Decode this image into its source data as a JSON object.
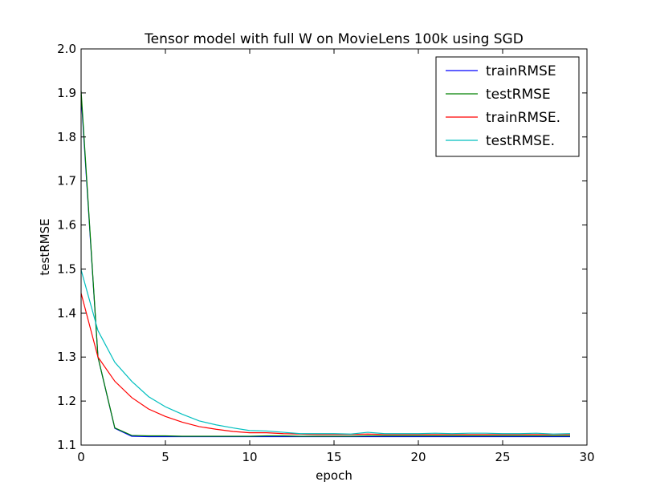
{
  "chart_data": {
    "type": "line",
    "title": "Tensor model with full W on MovieLens 100k using SGD",
    "xlabel": "epoch",
    "ylabel": "testRMSE",
    "xlim": [
      0,
      30
    ],
    "ylim": [
      1.1,
      2.0
    ],
    "xticks": [
      0,
      5,
      10,
      15,
      20,
      25,
      30
    ],
    "yticks": [
      1.1,
      1.2,
      1.3,
      1.4,
      1.5,
      1.6,
      1.7,
      1.8,
      1.9,
      2.0
    ],
    "xtick_labels": [
      "0",
      "5",
      "10",
      "15",
      "20",
      "25",
      "30"
    ],
    "ytick_labels": [
      "1.1",
      "1.2",
      "1.3",
      "1.4",
      "1.5",
      "1.6",
      "1.7",
      "1.8",
      "1.9",
      "2.0"
    ],
    "grid": false,
    "legend_position": "top-right",
    "x": [
      0,
      1,
      2,
      3,
      4,
      5,
      6,
      7,
      8,
      9,
      10,
      11,
      12,
      13,
      14,
      15,
      16,
      17,
      18,
      19,
      20,
      21,
      22,
      23,
      24,
      25,
      26,
      27,
      28,
      29
    ],
    "series": [
      {
        "name": "trainRMSE",
        "color": "#0000ff",
        "values": [
          1.895,
          1.3,
          1.138,
          1.12,
          1.119,
          1.119,
          1.119,
          1.119,
          1.119,
          1.119,
          1.119,
          1.119,
          1.119,
          1.119,
          1.119,
          1.119,
          1.119,
          1.119,
          1.119,
          1.119,
          1.119,
          1.119,
          1.119,
          1.119,
          1.119,
          1.119,
          1.119,
          1.119,
          1.119,
          1.119
        ]
      },
      {
        "name": "testRMSE",
        "color": "#008000",
        "values": [
          1.905,
          1.3,
          1.139,
          1.122,
          1.121,
          1.121,
          1.12,
          1.12,
          1.12,
          1.12,
          1.12,
          1.121,
          1.121,
          1.12,
          1.12,
          1.12,
          1.12,
          1.121,
          1.121,
          1.121,
          1.121,
          1.121,
          1.121,
          1.121,
          1.121,
          1.121,
          1.121,
          1.121,
          1.121,
          1.121
        ]
      },
      {
        "name": "trainRMSE.",
        "color": "#ff0000",
        "values": [
          1.445,
          1.3,
          1.245,
          1.208,
          1.182,
          1.165,
          1.152,
          1.142,
          1.136,
          1.131,
          1.128,
          1.128,
          1.126,
          1.125,
          1.124,
          1.124,
          1.124,
          1.125,
          1.124,
          1.124,
          1.124,
          1.124,
          1.124,
          1.124,
          1.124,
          1.124,
          1.124,
          1.124,
          1.124,
          1.124
        ]
      },
      {
        "name": "testRMSE.",
        "color": "#00bfbf",
        "values": [
          1.498,
          1.36,
          1.288,
          1.245,
          1.21,
          1.187,
          1.17,
          1.155,
          1.146,
          1.139,
          1.133,
          1.132,
          1.129,
          1.126,
          1.126,
          1.126,
          1.125,
          1.129,
          1.126,
          1.126,
          1.126,
          1.127,
          1.126,
          1.127,
          1.127,
          1.126,
          1.126,
          1.127,
          1.125,
          1.126
        ]
      }
    ]
  }
}
